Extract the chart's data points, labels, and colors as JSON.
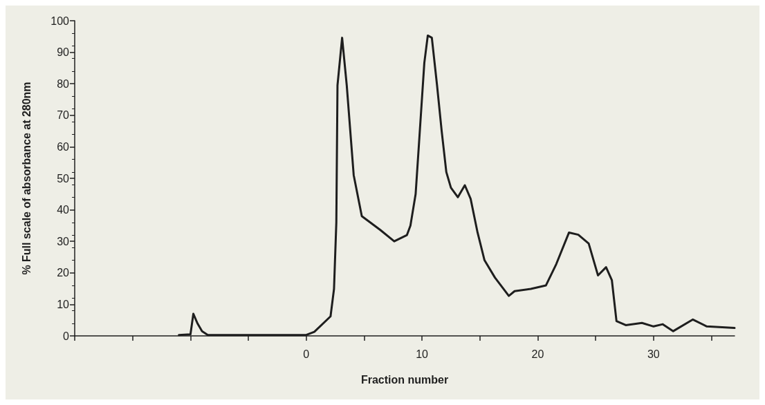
{
  "chart_data": {
    "type": "line",
    "xlabel": "Fraction number",
    "ylabel": "% Full scale of absorbance at 280nm",
    "xlim": [
      -20,
      37
    ],
    "ylim": [
      0,
      100
    ],
    "xticks": [
      {
        "value": -20,
        "label": null
      },
      {
        "value": -15,
        "label": null
      },
      {
        "value": -10,
        "label": null
      },
      {
        "value": -5,
        "label": null
      },
      0,
      {
        "value": 5,
        "label": null
      },
      10,
      {
        "value": 15,
        "label": null
      },
      20,
      {
        "value": 25,
        "label": null
      },
      30,
      {
        "value": 35,
        "label": null
      }
    ],
    "yticks": [
      0,
      10,
      20,
      30,
      40,
      50,
      60,
      70,
      80,
      90,
      100
    ],
    "grid": false,
    "marker": "none",
    "line_style": "solid",
    "series": [
      {
        "color": "#1e1e1e",
        "x": [
          -11,
          -10,
          -9.75,
          -9.4,
          -9,
          -8.5,
          -5,
          0,
          0.7,
          2.1,
          2.4,
          2.6,
          2.7,
          3.1,
          3.5,
          4.1,
          4.8,
          5.6,
          6.4,
          7.6,
          8.7,
          9.0,
          9.45,
          9.75,
          10.2,
          10.5,
          10.85,
          11.3,
          11.7,
          12.1,
          12.5,
          13.1,
          13.7,
          14.2,
          14.8,
          15.4,
          16.3,
          17.5,
          18.0,
          19.4,
          20.7,
          21.6,
          22.7,
          23.5,
          24.4,
          25.2,
          25.9,
          26.4,
          26.8,
          27.6,
          29,
          30,
          30.8,
          31.7,
          33.4,
          34.6,
          37
        ],
        "values": [
          0.3,
          0.5,
          7,
          4,
          1.5,
          0.3,
          0.3,
          0.3,
          1.3,
          6.2,
          14.9,
          36,
          79.5,
          94.6,
          79.5,
          51,
          38,
          35.8,
          33.6,
          30,
          32,
          35,
          45,
          61.6,
          86.6,
          95.3,
          94.6,
          79.5,
          65,
          52,
          47,
          44,
          47.8,
          43.5,
          32.8,
          24,
          18.5,
          12.7,
          14.2,
          14.9,
          16,
          22.8,
          32.8,
          32.1,
          29.3,
          19.2,
          21.8,
          17.7,
          4.7,
          3.4,
          4.1,
          3,
          3.7,
          1.5,
          5.2,
          3,
          2.5
        ]
      }
    ]
  }
}
